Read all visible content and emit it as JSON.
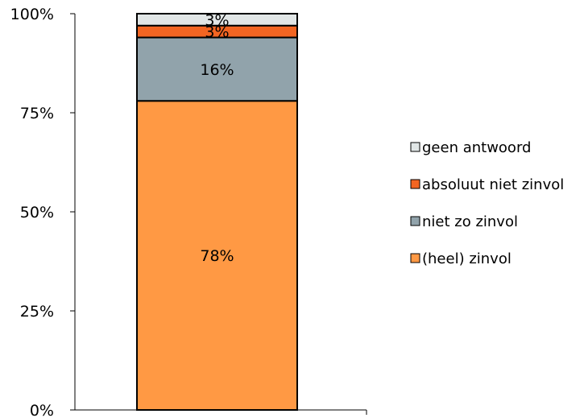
{
  "chart_data": {
    "type": "bar",
    "stacked": true,
    "stack_mode": "percent",
    "categories": [
      ""
    ],
    "series": [
      {
        "name": "(heel) zinvol",
        "values": [
          78
        ],
        "label": "78%",
        "color": "#FF9944"
      },
      {
        "name": "niet zo zinvol",
        "values": [
          16
        ],
        "label": "16%",
        "color": "#91A3AB"
      },
      {
        "name": "absoluut niet zinvol",
        "values": [
          3
        ],
        "label": "3%",
        "color": "#F26522"
      },
      {
        "name": "geen antwoord",
        "values": [
          3
        ],
        "label": "3%",
        "color": "#E1E6E6"
      }
    ],
    "y_ticks": [
      "0%",
      "25%",
      "50%",
      "75%",
      "100%"
    ],
    "ylim": [
      0,
      100
    ],
    "grid": false,
    "legend": {
      "position": "right",
      "order": [
        "geen antwoord",
        "absoluut niet zinvol",
        "niet zo zinvol",
        "(heel) zinvol"
      ]
    }
  }
}
